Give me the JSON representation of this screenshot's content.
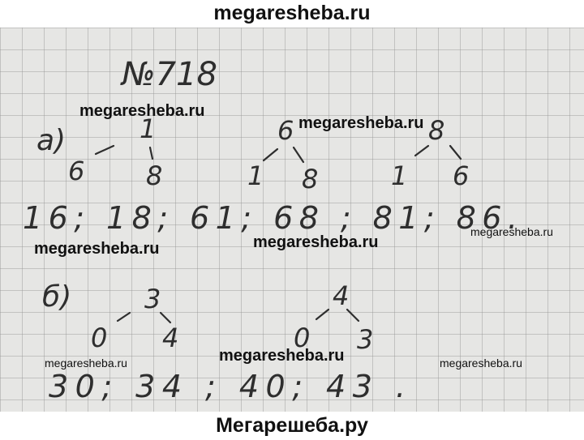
{
  "header": {
    "site": "megaresheba.ru"
  },
  "footer": {
    "site": "Мегарешеба.ру"
  },
  "problem": {
    "number": "№718",
    "part_a": {
      "label": "а)",
      "trees": [
        {
          "root": "1",
          "left": "6",
          "right": "8"
        },
        {
          "root": "6",
          "left": "1",
          "right": "8"
        },
        {
          "root": "8",
          "left": "1",
          "right": "6"
        }
      ],
      "answer": "16; 18; 61; 68 ; 81; 86."
    },
    "part_b": {
      "label": "б)",
      "trees": [
        {
          "root": "3",
          "left": "0",
          "right": "4"
        },
        {
          "root": "4",
          "left": "0",
          "right": "3"
        }
      ],
      "answer": "30; 34 ; 40; 43 ."
    }
  },
  "watermarks": [
    "megaresheba.ru",
    "megaresheba.ru",
    "megaresheba.ru",
    "megaresheba.ru",
    "megaresheba.ru",
    "megaresheba.ru",
    "megaresheba.ru",
    "megaresheba.ru"
  ]
}
